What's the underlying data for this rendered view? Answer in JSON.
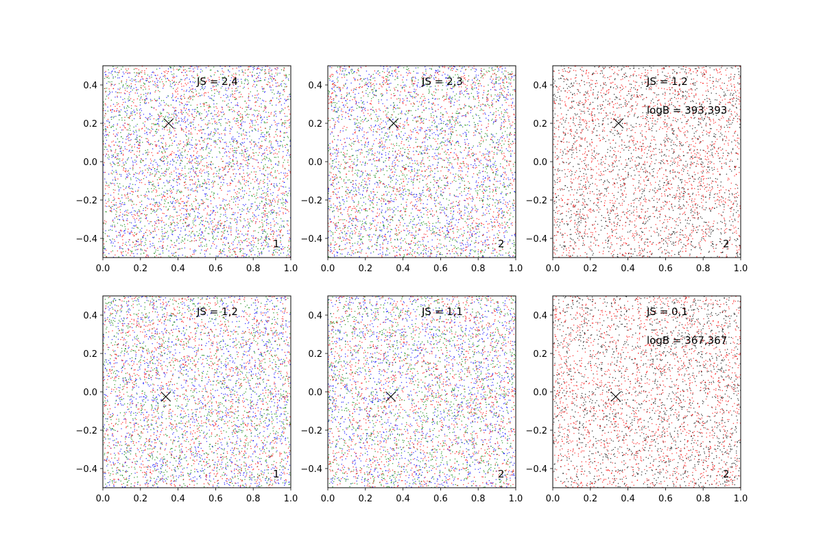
{
  "chart_data": [
    {
      "type": "scatter",
      "xlim": [
        0.0,
        1.0
      ],
      "ylim": [
        -0.5,
        0.5
      ],
      "xticks": [
        "0.0",
        "0.2",
        "0.4",
        "0.6",
        "0.8",
        "1.0"
      ],
      "yticks": [
        "−0.4",
        "−0.2",
        "0.0",
        "0.2",
        "0.4"
      ],
      "annotation": "JS = 2,4",
      "annotation2": "",
      "corner_label": "1",
      "marker": {
        "x": 0.35,
        "y": 0.2,
        "symbol": "x"
      },
      "series_colors": [
        "#0000ff",
        "#008000",
        "#ff0000"
      ],
      "points_per_series": 1500,
      "seed": 11
    },
    {
      "type": "scatter",
      "xlim": [
        0.0,
        1.0
      ],
      "ylim": [
        -0.5,
        0.5
      ],
      "xticks": [
        "0.0",
        "0.2",
        "0.4",
        "0.6",
        "0.8",
        "1.0"
      ],
      "yticks": [
        "−0.4",
        "−0.2",
        "0.0",
        "0.2",
        "0.4"
      ],
      "annotation": "JS = 2,3",
      "annotation2": "",
      "corner_label": "2",
      "marker": {
        "x": 0.35,
        "y": 0.2,
        "symbol": "x"
      },
      "series_colors": [
        "#0000ff",
        "#008000",
        "#ff0000"
      ],
      "points_per_series": 1500,
      "seed": 23
    },
    {
      "type": "scatter",
      "xlim": [
        0.0,
        1.0
      ],
      "ylim": [
        -0.5,
        0.5
      ],
      "xticks": [
        "0.0",
        "0.2",
        "0.4",
        "0.6",
        "0.8",
        "1.0"
      ],
      "yticks": [
        "−0.4",
        "−0.2",
        "0.0",
        "0.2",
        "0.4"
      ],
      "annotation": "JS = 1,2",
      "annotation2": "logB = 393,393",
      "corner_label": "2",
      "marker": {
        "x": 0.35,
        "y": 0.2,
        "symbol": "x"
      },
      "series_colors": [
        "#000000",
        "#ff0000"
      ],
      "points_per_series": 1800,
      "seed": 37
    },
    {
      "type": "scatter",
      "xlim": [
        0.0,
        1.0
      ],
      "ylim": [
        -0.5,
        0.5
      ],
      "xticks": [
        "0.0",
        "0.2",
        "0.4",
        "0.6",
        "0.8",
        "1.0"
      ],
      "yticks": [
        "−0.4",
        "−0.2",
        "0.0",
        "0.2",
        "0.4"
      ],
      "annotation": "JS = 1,2",
      "annotation2": "",
      "corner_label": "1",
      "marker": {
        "x": 0.335,
        "y": -0.025,
        "symbol": "x"
      },
      "series_colors": [
        "#0000ff",
        "#008000",
        "#ff0000"
      ],
      "points_per_series": 1500,
      "seed": 41
    },
    {
      "type": "scatter",
      "xlim": [
        0.0,
        1.0
      ],
      "ylim": [
        -0.5,
        0.5
      ],
      "xticks": [
        "0.0",
        "0.2",
        "0.4",
        "0.6",
        "0.8",
        "1.0"
      ],
      "yticks": [
        "−0.4",
        "−0.2",
        "0.0",
        "0.2",
        "0.4"
      ],
      "annotation": "JS = 1,1",
      "annotation2": "",
      "corner_label": "2",
      "marker": {
        "x": 0.335,
        "y": -0.025,
        "symbol": "x"
      },
      "series_colors": [
        "#0000ff",
        "#008000",
        "#ff0000"
      ],
      "points_per_series": 1500,
      "seed": 53
    },
    {
      "type": "scatter",
      "xlim": [
        0.0,
        1.0
      ],
      "ylim": [
        -0.5,
        0.5
      ],
      "xticks": [
        "0.0",
        "0.2",
        "0.4",
        "0.6",
        "0.8",
        "1.0"
      ],
      "yticks": [
        "−0.4",
        "−0.2",
        "0.0",
        "0.2",
        "0.4"
      ],
      "annotation": "JS = 0,1",
      "annotation2": "logB = 367,367",
      "corner_label": "2",
      "marker": {
        "x": 0.335,
        "y": -0.025,
        "symbol": "x"
      },
      "series_colors": [
        "#000000",
        "#ff0000"
      ],
      "points_per_series": 1800,
      "seed": 67
    }
  ]
}
